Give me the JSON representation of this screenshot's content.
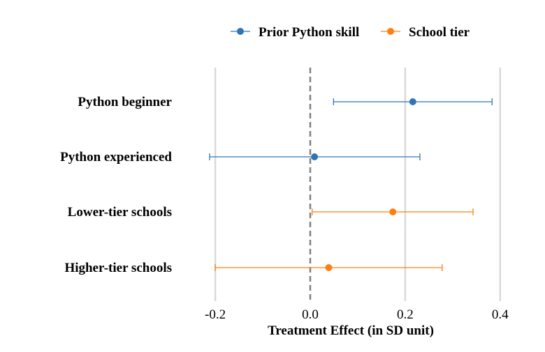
{
  "chart_data": {
    "type": "errorbar",
    "title": "",
    "xlabel": "Treatment Effect (in SD unit)",
    "ylabel": "",
    "xlim": [
      -0.25,
      0.45
    ],
    "xticks": [
      -0.2,
      0.0,
      0.2,
      0.4
    ],
    "xtick_labels": [
      "-0.2",
      "0.0",
      "0.2",
      "0.4"
    ],
    "grid": "vertical major",
    "reference_line": {
      "x": 0,
      "style": "dashed",
      "color": "#808080"
    },
    "legend": {
      "placement": "top",
      "entries": [
        {
          "name": "Prior Python skill",
          "color": "#2e75b6"
        },
        {
          "name": "School tier",
          "color": "#ff7f0e"
        }
      ]
    },
    "categories": [
      "Python beginner",
      "Python experienced",
      "Lower-tier schools",
      "Higher-tier schools"
    ],
    "series": [
      {
        "name": "Prior Python skill",
        "color": "#2e75b6",
        "points": [
          {
            "category": "Python beginner",
            "estimate": 0.216,
            "ci_low": 0.049,
            "ci_high": 0.383
          },
          {
            "category": "Python experienced",
            "estimate": 0.009,
            "ci_low": -0.212,
            "ci_high": 0.231
          }
        ]
      },
      {
        "name": "School tier",
        "color": "#ff7f0e",
        "points": [
          {
            "category": "Lower-tier schools",
            "estimate": 0.174,
            "ci_low": 0.004,
            "ci_high": 0.343
          },
          {
            "category": "Higher-tier schools",
            "estimate": 0.039,
            "ci_low": -0.2,
            "ci_high": 0.278
          }
        ]
      }
    ]
  }
}
